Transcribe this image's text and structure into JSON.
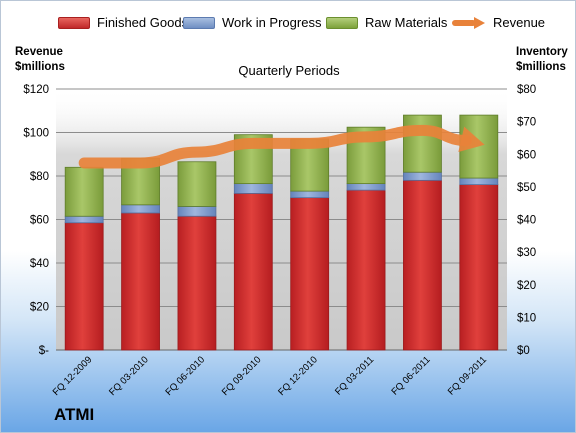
{
  "company": "ATMI",
  "legend": {
    "finished_goods": "Finished Goods",
    "wip": "Work in Progress",
    "raw": "Raw Materials",
    "revenue": "Revenue"
  },
  "left_axis_title": {
    "line1": "Revenue",
    "line2": "$millions"
  },
  "right_axis_title": {
    "line1": "Inventory",
    "line2": "$millions"
  },
  "chart_data": {
    "type": "bar",
    "subtype": "stacked-bar-with-line",
    "title": "Quarterly Periods",
    "categories": [
      "FQ 12-2009",
      "FQ 03-2010",
      "FQ 06-2010",
      "FQ 09-2010",
      "FQ 12-2010",
      "FQ 03-2011",
      "FQ 06-2011",
      "FQ 09-2011"
    ],
    "series": [
      {
        "name": "Finished Goods",
        "axis": "right",
        "color": "#d42f2f",
        "values": [
          39.0,
          42.0,
          41.0,
          48.0,
          46.7,
          49.0,
          52.0,
          50.7
        ]
      },
      {
        "name": "Work in Progress",
        "axis": "right",
        "color": "#7d9bcf",
        "values": [
          2.0,
          2.5,
          3.0,
          3.0,
          2.0,
          2.0,
          2.5,
          2.0
        ]
      },
      {
        "name": "Raw Materials",
        "axis": "right",
        "color": "#92b34f",
        "values": [
          15.0,
          14.3,
          13.7,
          15.0,
          16.0,
          17.3,
          17.5,
          19.3
        ]
      },
      {
        "name": "Revenue",
        "axis": "left",
        "type": "line",
        "color": "#e8823a",
        "values": [
          86,
          86,
          91,
          95,
          95,
          98,
          101,
          95
        ]
      }
    ],
    "y_left": {
      "label": "Revenue $millions",
      "ylim": [
        0,
        120
      ],
      "ticks": [
        "$-",
        "$20",
        "$40",
        "$60",
        "$80",
        "$100",
        "$120"
      ]
    },
    "y_right": {
      "label": "Inventory $millions",
      "ylim": [
        0,
        80
      ],
      "ticks": [
        "$0",
        "$10",
        "$20",
        "$30",
        "$40",
        "$50",
        "$60",
        "$70",
        "$80"
      ]
    },
    "grid": true,
    "legend_position": "top"
  }
}
